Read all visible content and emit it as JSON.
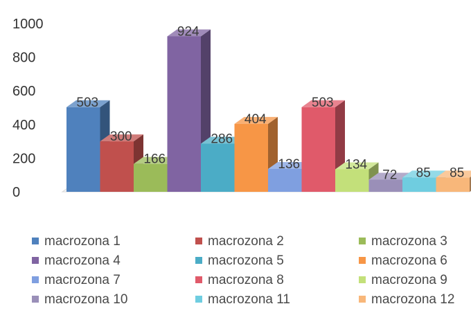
{
  "chart_data": {
    "type": "bar",
    "title": "",
    "xlabel": "",
    "ylabel": "",
    "ylim": [
      0,
      1000
    ],
    "yticks": [
      0,
      200,
      400,
      600,
      800,
      1000
    ],
    "grid": false,
    "legend_position": "bottom",
    "three_d": true,
    "series": [
      {
        "name": "macrozona 1",
        "value": 503,
        "label": "503",
        "color": "#4f81bd"
      },
      {
        "name": "macrozona 2",
        "value": 300,
        "label": "300",
        "color": "#c0504d"
      },
      {
        "name": "macrozona 3",
        "value": 166,
        "label": "166",
        "color": "#9bbb59"
      },
      {
        "name": "macrozona 4",
        "value": 924,
        "label": "924",
        "color": "#8064a2"
      },
      {
        "name": "macrozona 5",
        "value": 286,
        "label": "286",
        "color": "#4bacc6"
      },
      {
        "name": "macrozona 6",
        "value": 404,
        "label": "404",
        "color": "#f79646"
      },
      {
        "name": "macrozona 7",
        "value": 136,
        "label": "136",
        "color": "#7f9fe0"
      },
      {
        "name": "macrozona 8",
        "value": 503,
        "label": "503",
        "color": "#e05a6a"
      },
      {
        "name": "macrozona 9",
        "value": 134,
        "label": "134",
        "color": "#c3e07a"
      },
      {
        "name": "macrozona 10",
        "value": 72,
        "label": "72",
        "color": "#9a8fb8"
      },
      {
        "name": "macrozona 11",
        "value": 85,
        "label": "85",
        "color": "#6fcde0"
      },
      {
        "name": "macrozona 12",
        "value": 85,
        "label": "85",
        "color": "#f8b77a"
      }
    ]
  }
}
